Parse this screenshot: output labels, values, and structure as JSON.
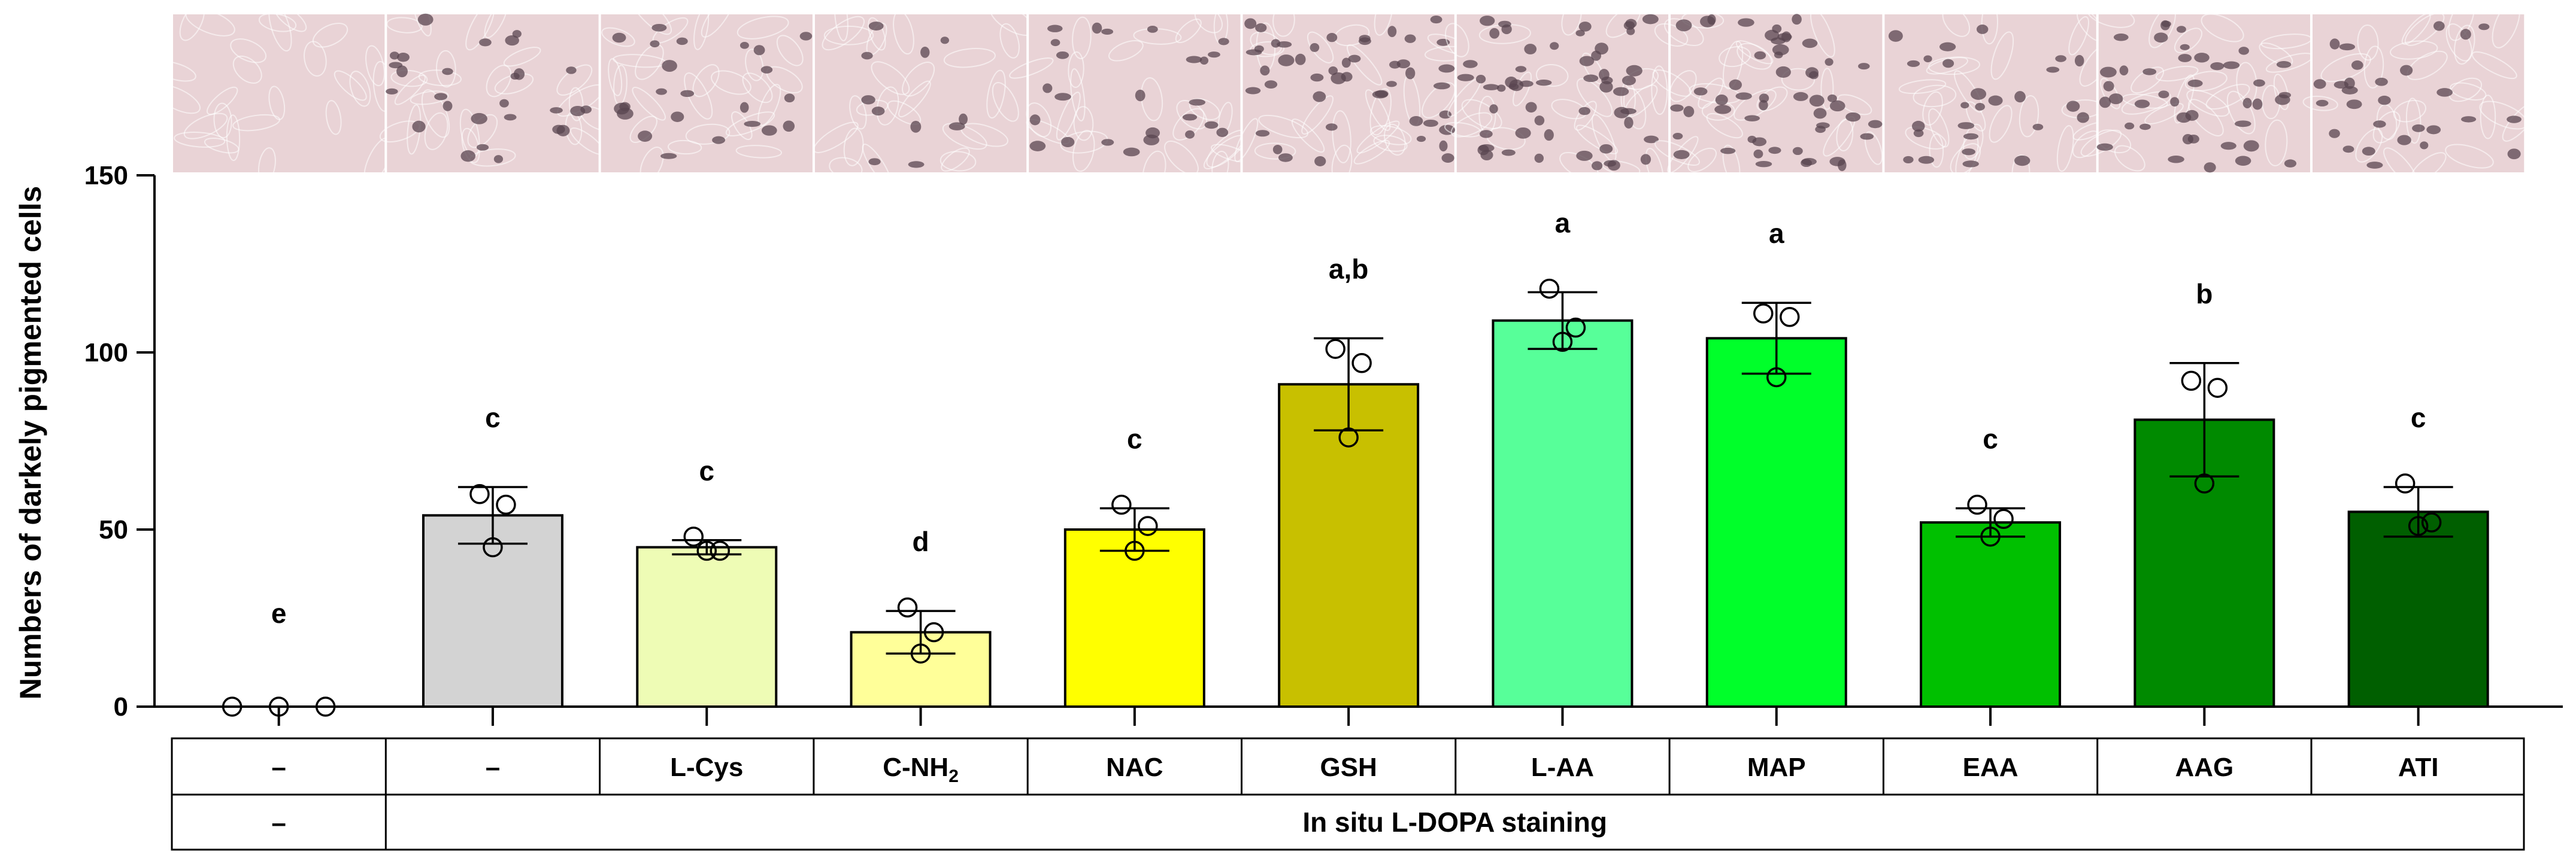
{
  "chart_data": {
    "type": "bar",
    "ylabel": "Numbers of darkely pigmented cells",
    "ylim": [
      0,
      150
    ],
    "yticks": [
      "0",
      "50",
      "100",
      "150"
    ],
    "bars": [
      {
        "fill": "#ffffff",
        "value": 0,
        "sd": 0,
        "points": [
          0,
          0,
          0
        ],
        "letter": "e",
        "treatment": "–",
        "staining": "–"
      },
      {
        "fill": "#d3d3d3",
        "value": 54,
        "sd": 8,
        "points": [
          60,
          57,
          45
        ],
        "letter": "c",
        "treatment": "–"
      },
      {
        "fill": "#eefcb5",
        "value": 45,
        "sd": 2,
        "points": [
          48,
          44,
          44
        ],
        "letter": "c",
        "treatment": "L-Cys"
      },
      {
        "fill": "#ffff99",
        "value": 21,
        "sd": 6,
        "points": [
          28,
          21,
          15
        ],
        "letter": "d",
        "treatment": "C-NH",
        "treatment_sub": "2"
      },
      {
        "fill": "#ffff00",
        "value": 50,
        "sd": 6,
        "points": [
          57,
          51,
          44
        ],
        "letter": "c",
        "treatment": "NAC"
      },
      {
        "fill": "#c8c000",
        "value": 91,
        "sd": 13,
        "points": [
          101,
          97,
          76
        ],
        "letter": "a,b",
        "treatment": "GSH"
      },
      {
        "fill": "#57ff99",
        "value": 109,
        "sd": 8,
        "points": [
          118,
          107,
          103
        ],
        "letter": "a",
        "treatment": "L-AA"
      },
      {
        "fill": "#00ff2a",
        "value": 104,
        "sd": 10,
        "points": [
          111,
          110,
          93
        ],
        "letter": "a",
        "treatment": "MAP"
      },
      {
        "fill": "#00c000",
        "value": 52,
        "sd": 4,
        "points": [
          57,
          53,
          48
        ],
        "letter": "c",
        "treatment": "EAA"
      },
      {
        "fill": "#008a00",
        "value": 81,
        "sd": 16,
        "points": [
          92,
          90,
          63
        ],
        "letter": "b",
        "treatment": "AAG"
      },
      {
        "fill": "#005f00",
        "value": 55,
        "sd": 7,
        "points": [
          63,
          52,
          51
        ],
        "letter": "c",
        "treatment": "ATI"
      }
    ],
    "staining_label": "In situ L-DOPA staining",
    "micrograph_colors": {
      "background": "#e9d3d6",
      "cell_outline": "#ffffff",
      "pigment": "#5a4550"
    }
  }
}
